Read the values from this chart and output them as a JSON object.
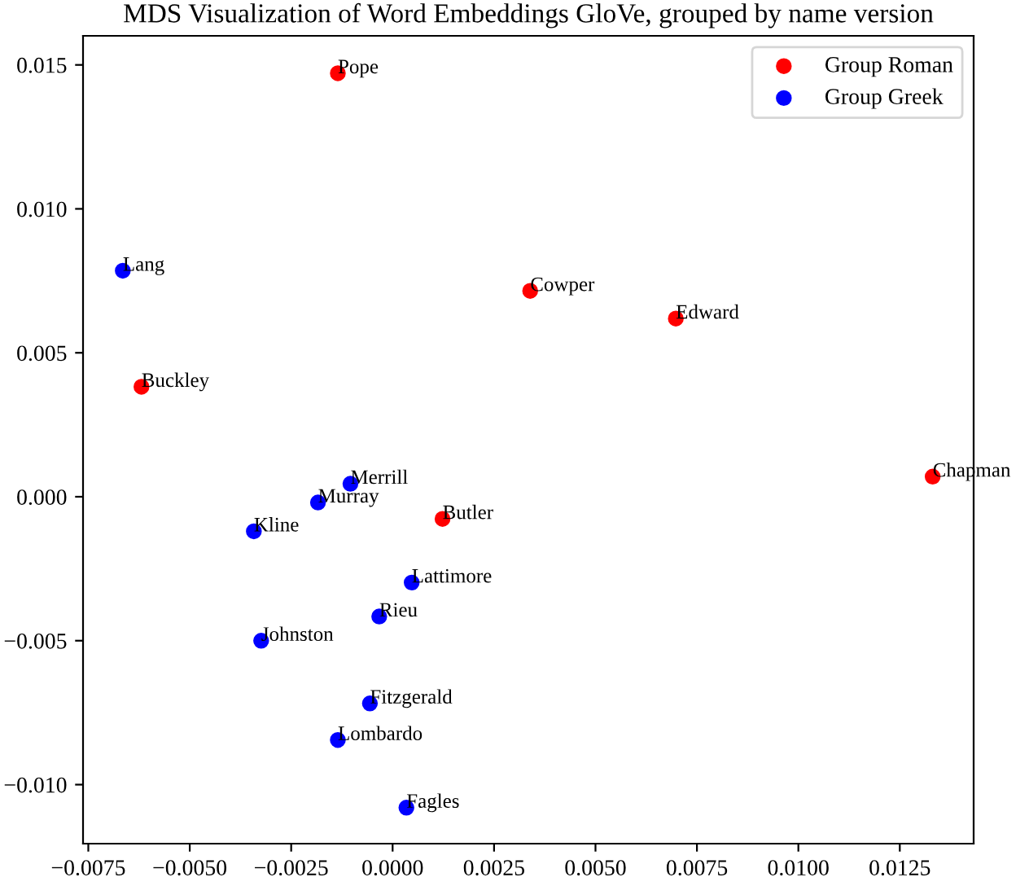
{
  "chart_data": {
    "type": "scatter",
    "title": "MDS Visualization of Word Embeddings GloVe, grouped by name version",
    "series": [
      {
        "name": "Group Roman",
        "color": "#ff0000",
        "x": [
          -0.00135,
          -0.00619,
          0.00339,
          0.00698,
          0.01331,
          0.00123
        ],
        "values": [
          0.01471,
          0.00382,
          0.00715,
          0.00619,
          0.0007,
          -0.00077
        ]
      },
      {
        "name": "Group Greek",
        "color": "#0000ff",
        "x": [
          -0.00665,
          -0.00104,
          -0.00184,
          -0.00342,
          0.00047,
          -0.00033,
          -0.00324,
          -0.00056,
          -0.00135,
          0.00034
        ],
        "values": [
          0.00785,
          0.00045,
          -0.0002,
          -0.0012,
          -0.00298,
          -0.00416,
          -0.005,
          -0.00718,
          -0.00845,
          -0.0108
        ]
      }
    ],
    "annotations": [
      {
        "text": "Pope",
        "x": -0.00135,
        "y": 0.01471
      },
      {
        "text": "Buckley",
        "x": -0.00619,
        "y": 0.00382
      },
      {
        "text": "Cowper",
        "x": 0.00339,
        "y": 0.00715
      },
      {
        "text": "Edward",
        "x": 0.00698,
        "y": 0.00619
      },
      {
        "text": "Chapman",
        "x": 0.01331,
        "y": 0.0007
      },
      {
        "text": "Butler",
        "x": 0.00123,
        "y": -0.00077
      },
      {
        "text": "Lang",
        "x": -0.00665,
        "y": 0.00785
      },
      {
        "text": "Merrill",
        "x": -0.00104,
        "y": 0.00045
      },
      {
        "text": "Murray",
        "x": -0.00184,
        "y": -0.0002
      },
      {
        "text": "Kline",
        "x": -0.00342,
        "y": -0.0012
      },
      {
        "text": "Lattimore",
        "x": 0.00047,
        "y": -0.00298
      },
      {
        "text": "Rieu",
        "x": -0.00033,
        "y": -0.00416
      },
      {
        "text": "Johnston",
        "x": -0.00324,
        "y": -0.005
      },
      {
        "text": "Fitzgerald",
        "x": -0.00056,
        "y": -0.00718
      },
      {
        "text": "Lombardo",
        "x": -0.00135,
        "y": -0.00845
      },
      {
        "text": "Fagles",
        "x": 0.00034,
        "y": -0.0108
      }
    ],
    "xlim": [
      -0.00763,
      0.01432
    ],
    "ylim": [
      -0.01205,
      0.01601
    ],
    "xticks": [
      {
        "value": -0.0075,
        "label": "−0.0075"
      },
      {
        "value": -0.005,
        "label": "−0.0050"
      },
      {
        "value": -0.0025,
        "label": "−0.0025"
      },
      {
        "value": 0,
        "label": "0.0000"
      },
      {
        "value": 0.0025,
        "label": "0.0025"
      },
      {
        "value": 0.005,
        "label": "0.0050"
      },
      {
        "value": 0.0075,
        "label": "0.0075"
      },
      {
        "value": 0.01,
        "label": "0.0100"
      },
      {
        "value": 0.0125,
        "label": "0.0125"
      }
    ],
    "yticks": [
      {
        "value": -0.01,
        "label": "−0.010"
      },
      {
        "value": -0.005,
        "label": "−0.005"
      },
      {
        "value": 0,
        "label": "0.000"
      },
      {
        "value": 0.005,
        "label": "0.005"
      },
      {
        "value": 0.01,
        "label": "0.010"
      },
      {
        "value": 0.015,
        "label": "0.015"
      }
    ],
    "grid": false,
    "legend": "top right",
    "marker": "circle"
  }
}
